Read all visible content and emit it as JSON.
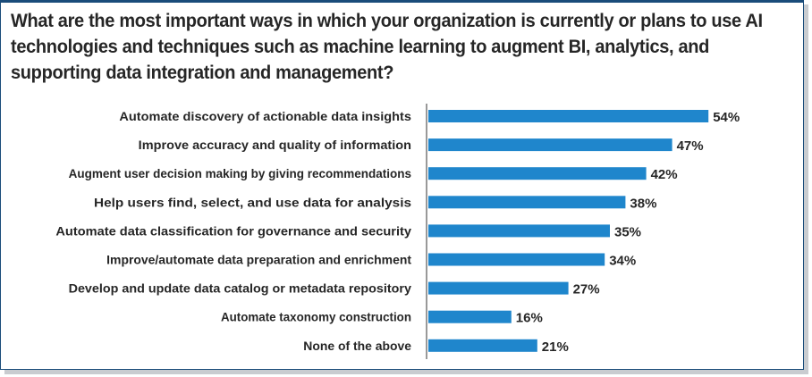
{
  "chart_data": {
    "type": "bar",
    "orientation": "horizontal",
    "title": "What are the most important ways in which your organization is currently or plans to use AI technologies and techniques such as machine learning to augment BI, analytics, and supporting data integration and management?",
    "categories": [
      "Automate discovery of actionable data insights",
      "Improve accuracy and quality of information",
      "Augment user decision making by giving recommendations",
      "Help users find, select, and use data for analysis",
      "Automate data classification for governance and security",
      "Improve/automate data preparation and enrichment",
      "Develop and update data catalog or metadata repository",
      "Automate taxonomy construction",
      "None of the above"
    ],
    "values": [
      54,
      47,
      42,
      38,
      35,
      34,
      27,
      16,
      21
    ],
    "value_labels": [
      "54%",
      "47%",
      "42%",
      "38%",
      "35%",
      "34%",
      "27%",
      "16%",
      "21%"
    ],
    "unit": "%",
    "xlim": [
      0,
      60
    ],
    "grid": false,
    "legend": "none",
    "colors": {
      "bar": "#1f86cc",
      "text": "#262626",
      "axis": "#333333",
      "frame": "#1a4c7a"
    }
  }
}
